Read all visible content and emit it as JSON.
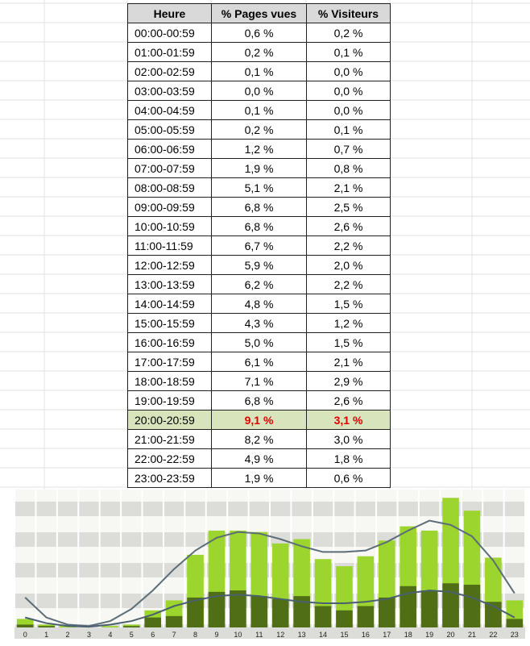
{
  "table": {
    "header": [
      "Heure",
      "% Pages vues",
      "% Visiteurs"
    ],
    "rows": [
      [
        "00:00-00:59",
        "0,6 %",
        "0,2 %"
      ],
      [
        "01:00-01:59",
        "0,2 %",
        "0,1 %"
      ],
      [
        "02:00-02:59",
        "0,1 %",
        "0,0 %"
      ],
      [
        "03:00-03:59",
        "0,0 %",
        "0,0 %"
      ],
      [
        "04:00-04:59",
        "0,1 %",
        "0,0 %"
      ],
      [
        "05:00-05:59",
        "0,2 %",
        "0,1 %"
      ],
      [
        "06:00-06:59",
        "1,2 %",
        "0,7 %"
      ],
      [
        "07:00-07:59",
        "1,9 %",
        "0,8 %"
      ],
      [
        "08:00-08:59",
        "5,1 %",
        "2,1 %"
      ],
      [
        "09:00-09:59",
        "6,8 %",
        "2,5 %"
      ],
      [
        "10:00-10:59",
        "6,8 %",
        "2,6 %"
      ],
      [
        "11:00-11:59",
        "6,7 %",
        "2,2 %"
      ],
      [
        "12:00-12:59",
        "5,9 %",
        "2,0 %"
      ],
      [
        "13:00-13:59",
        "6,2 %",
        "2,2 %"
      ],
      [
        "14:00-14:59",
        "4,8 %",
        "1,5 %"
      ],
      [
        "15:00-15:59",
        "4,3 %",
        "1,2 %"
      ],
      [
        "16:00-16:59",
        "5,0 %",
        "1,5 %"
      ],
      [
        "17:00-17:59",
        "6,1 %",
        "2,1 %"
      ],
      [
        "18:00-18:59",
        "7,1 %",
        "2,9 %"
      ],
      [
        "19:00-19:59",
        "6,8 %",
        "2,6 %"
      ],
      [
        "20:00-20:59",
        "9,1 %",
        "3,1 %"
      ],
      [
        "21:00-21:59",
        "8,2 %",
        "3,0 %"
      ],
      [
        "22:00-22:59",
        "4,9 %",
        "1,8 %"
      ],
      [
        "23:00-23:59",
        "1,9 %",
        "0,6 %"
      ]
    ],
    "highlight_row": 20,
    "highlight_color": "#e00000",
    "highlight_fill": "#d8e4bc"
  },
  "chart_data": {
    "type": "bar",
    "categories": [
      "0",
      "1",
      "2",
      "3",
      "4",
      "5",
      "6",
      "7",
      "8",
      "9",
      "10",
      "11",
      "12",
      "13",
      "14",
      "15",
      "16",
      "17",
      "18",
      "19",
      "20",
      "21",
      "22",
      "23"
    ],
    "ylim": [
      0,
      9.4
    ],
    "series": [
      {
        "color": "#9bd52d",
        "values": [
          0.6,
          0.2,
          0.1,
          0.0,
          0.1,
          0.2,
          1.2,
          1.9,
          5.1,
          6.8,
          6.8,
          6.7,
          5.9,
          6.2,
          4.8,
          4.3,
          5.0,
          6.1,
          7.1,
          6.8,
          9.1,
          8.2,
          4.9,
          1.9
        ]
      },
      {
        "color": "#4f6e15",
        "values": [
          0.2,
          0.1,
          0.0,
          0.0,
          0.0,
          0.1,
          0.7,
          0.8,
          2.1,
          2.5,
          2.6,
          2.2,
          2.0,
          2.2,
          1.5,
          1.2,
          1.5,
          2.1,
          2.9,
          2.6,
          3.1,
          3.0,
          1.8,
          0.6
        ]
      },
      {
        "type": "line",
        "color": "#5b6e78",
        "values": [
          2.1,
          0.7,
          0.2,
          0.1,
          0.45,
          1.3,
          2.6,
          4.1,
          5.4,
          6.3,
          6.7,
          6.6,
          6.2,
          5.7,
          5.3,
          5.3,
          5.4,
          6.0,
          6.8,
          7.5,
          7.2,
          6.4,
          4.7,
          2.4
        ]
      },
      {
        "type": "line",
        "color": "#4a6070",
        "values": [
          0.7,
          0.3,
          0.1,
          0.05,
          0.2,
          0.45,
          0.9,
          1.5,
          1.9,
          2.2,
          2.3,
          2.2,
          2.0,
          1.8,
          1.7,
          1.7,
          1.8,
          2.0,
          2.4,
          2.6,
          2.5,
          2.1,
          1.5,
          0.7
        ]
      }
    ]
  }
}
